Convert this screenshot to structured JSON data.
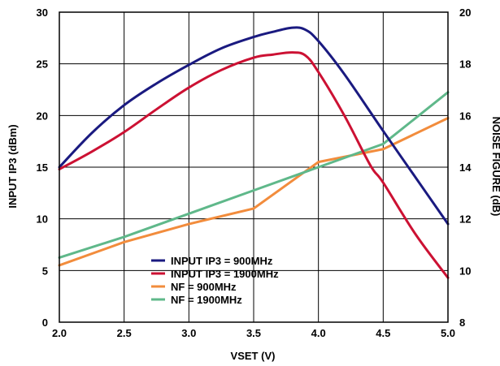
{
  "chart_data": {
    "type": "line",
    "title": "",
    "xlabel": "VSET (V)",
    "ylabel_left": "INPUT IP3 (dBm)",
    "ylabel_right": "NOISE FIGURE (dB)",
    "xlim": [
      2.0,
      5.0
    ],
    "ylim_left": [
      0,
      30
    ],
    "ylim_right": [
      8,
      20
    ],
    "x_ticks": [
      "2.0",
      "2.5",
      "3.0",
      "3.5",
      "4.0",
      "4.5",
      "5.0"
    ],
    "y_ticks_left": [
      "0",
      "5",
      "10",
      "15",
      "20",
      "25",
      "30"
    ],
    "y_ticks_right": [
      "8",
      "10",
      "12",
      "14",
      "16",
      "18",
      "20"
    ],
    "grid": true,
    "legend_position": "lower-center",
    "series": [
      {
        "name": "INPUT IP3 = 900MHz",
        "axis": "left",
        "color": "#1a1a80",
        "x": [
          2.0,
          2.25,
          2.5,
          2.75,
          3.0,
          3.25,
          3.5,
          3.65,
          3.8,
          3.9,
          4.0,
          4.2,
          4.5,
          4.75,
          5.0
        ],
        "y": [
          15.0,
          18.3,
          21.0,
          23.1,
          24.9,
          26.5,
          27.6,
          28.1,
          28.5,
          28.3,
          27.2,
          24.0,
          18.5,
          14.0,
          9.5
        ]
      },
      {
        "name": "INPUT IP3 = 1900MHz",
        "axis": "left",
        "color": "#cc1133",
        "x": [
          2.0,
          2.25,
          2.5,
          2.75,
          3.0,
          3.25,
          3.5,
          3.65,
          3.8,
          3.9,
          4.0,
          4.2,
          4.4,
          4.5,
          4.75,
          5.0
        ],
        "y": [
          14.8,
          16.5,
          18.4,
          20.6,
          22.7,
          24.4,
          25.6,
          25.9,
          26.1,
          25.8,
          24.2,
          20.0,
          15.2,
          13.5,
          8.5,
          4.3
        ]
      },
      {
        "name": "NF = 900MHz",
        "axis": "right",
        "color": "#f28c3c",
        "x": [
          2.0,
          2.5,
          3.0,
          3.5,
          4.0,
          4.5,
          5.0
        ],
        "y": [
          10.2,
          11.1,
          11.8,
          12.4,
          14.2,
          14.7,
          15.9
        ]
      },
      {
        "name": "NF = 1900MHz",
        "axis": "right",
        "color": "#5fb88a",
        "x": [
          2.0,
          2.5,
          3.0,
          3.5,
          4.0,
          4.5,
          5.0
        ],
        "y": [
          10.5,
          11.3,
          12.2,
          13.1,
          14.0,
          14.9,
          16.9
        ]
      }
    ]
  }
}
